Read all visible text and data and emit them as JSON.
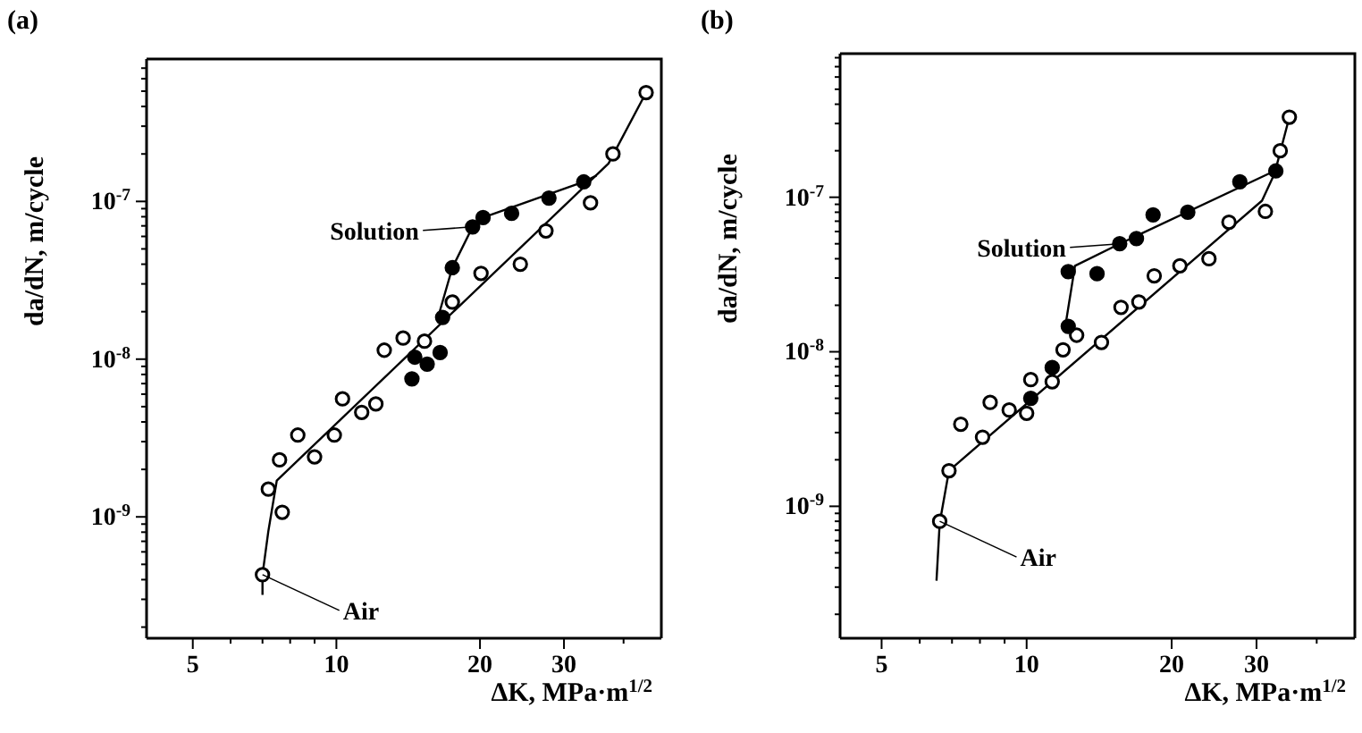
{
  "chart_data": [
    {
      "type": "scatter",
      "title": "(a)",
      "xlabel": "ΔK, MPa·m$^{1/2}$",
      "ylabel": "da/dN, m/cycle",
      "log": "xy",
      "grid": false,
      "marker": "circle",
      "xlim": [
        4,
        48
      ],
      "xticks": [
        5,
        {
          "value": 6,
          "label": null
        },
        {
          "value": 7,
          "label": null
        },
        {
          "value": 8,
          "label": null
        },
        {
          "value": 9,
          "label": null
        },
        10,
        20,
        30,
        {
          "value": 40,
          "label": null
        }
      ],
      "ylim": [
        1.7e-10,
        8e-07
      ],
      "yticks": [
        {
          "value": 2e-10,
          "label": null
        },
        {
          "value": 3e-10,
          "label": null
        },
        {
          "value": 4e-10,
          "label": null
        },
        {
          "value": 5e-10,
          "label": null
        },
        {
          "value": 6e-10,
          "label": null
        },
        {
          "value": 7e-10,
          "label": null
        },
        {
          "value": 8e-10,
          "label": null
        },
        {
          "value": 9e-10,
          "label": null
        },
        {
          "value": 1e-09,
          "label": "10$^{-9}$"
        },
        {
          "value": 2e-09,
          "label": null
        },
        {
          "value": 3e-09,
          "label": null
        },
        {
          "value": 4e-09,
          "label": null
        },
        {
          "value": 5e-09,
          "label": null
        },
        {
          "value": 6e-09,
          "label": null
        },
        {
          "value": 7e-09,
          "label": null
        },
        {
          "value": 8e-09,
          "label": null
        },
        {
          "value": 9e-09,
          "label": null
        },
        {
          "value": 1e-08,
          "label": "10$^{-8}$"
        },
        {
          "value": 2e-08,
          "label": null
        },
        {
          "value": 3e-08,
          "label": null
        },
        {
          "value": 4e-08,
          "label": null
        },
        {
          "value": 5e-08,
          "label": null
        },
        {
          "value": 6e-08,
          "label": null
        },
        {
          "value": 7e-08,
          "label": null
        },
        {
          "value": 8e-08,
          "label": null
        },
        {
          "value": 9e-08,
          "label": null
        },
        {
          "value": 1e-07,
          "label": "10$^{-7}$"
        },
        {
          "value": 2e-07,
          "label": null
        },
        {
          "value": 3e-07,
          "label": null
        },
        {
          "value": 4e-07,
          "label": null
        },
        {
          "value": 5e-07,
          "label": null
        },
        {
          "value": 6e-07,
          "label": null
        },
        {
          "value": 7e-07,
          "label": null
        }
      ],
      "annotations": [
        {
          "text": "Solution",
          "x": 19.3,
          "y": 6.9e-08
        },
        {
          "text": "Air",
          "x": 7.0,
          "y": 4.3e-10
        }
      ],
      "series": [
        {
          "color": "#ffffff",
          "x": [
            7.0,
            7.7,
            7.2,
            7.6,
            8.3,
            9.0,
            9.9,
            10.3,
            11.3,
            12.1,
            12.6,
            13.8,
            15.3,
            17.5,
            20.1,
            24.3,
            27.5,
            34.1,
            38.0,
            44.6
          ],
          "values": [
            4.3e-10,
            1.07e-09,
            1.5e-09,
            2.3e-09,
            3.3e-09,
            2.4e-09,
            3.3e-09,
            5.6e-09,
            4.6e-09,
            5.2e-09,
            1.14e-08,
            1.36e-08,
            1.3e-08,
            2.3e-08,
            3.5e-08,
            4e-08,
            6.5e-08,
            9.8e-08,
            2e-07,
            4.9e-07
          ]
        },
        {
          "color": "#000000",
          "x": [
            14.4,
            14.6,
            15.5,
            16.5,
            16.7,
            17.5,
            19.3,
            20.3,
            23.3,
            27.9,
            33.0
          ],
          "values": [
            7.5e-09,
            1.03e-08,
            9.3e-09,
            1.1e-08,
            1.84e-08,
            3.8e-08,
            6.9e-08,
            7.9e-08,
            8.4e-08,
            1.05e-07,
            1.33e-07
          ]
        },
        {
          "type": "line",
          "marker": "none",
          "color": "#000000",
          "x": [
            7.0,
            7.0,
            7.2,
            7.5,
            37.2,
            44.6
          ],
          "values": [
            3.2e-10,
            4.3e-10,
            8.1e-10,
            1.7e-09,
            1.74e-07,
            4.9e-07
          ]
        },
        {
          "type": "line",
          "marker": "none",
          "color": "#000000",
          "x": [
            16.3,
            17.5,
            19.3,
            20.3,
            33.0,
            35.1
          ],
          "values": [
            1.8e-08,
            3.8e-08,
            6.9e-08,
            7.9e-08,
            1.33e-07,
            1.46e-07
          ]
        }
      ]
    },
    {
      "type": "scatter",
      "title": "(b)",
      "xlabel": "ΔK, MPa·m$^{1/2}$",
      "ylabel": "da/dN, m/cycle",
      "log": "xy",
      "grid": false,
      "marker": "circle",
      "xlim": [
        4.1,
        48
      ],
      "xticks": [
        5,
        {
          "value": 6,
          "label": null
        },
        {
          "value": 7,
          "label": null
        },
        {
          "value": 8,
          "label": null
        },
        {
          "value": 9,
          "label": null
        },
        10,
        20,
        30,
        {
          "value": 40,
          "label": null
        }
      ],
      "ylim": [
        1.4e-10,
        8.5e-07
      ],
      "yticks": [
        {
          "value": 2e-10,
          "label": null
        },
        {
          "value": 3e-10,
          "label": null
        },
        {
          "value": 4e-10,
          "label": null
        },
        {
          "value": 5e-10,
          "label": null
        },
        {
          "value": 6e-10,
          "label": null
        },
        {
          "value": 7e-10,
          "label": null
        },
        {
          "value": 8e-10,
          "label": null
        },
        {
          "value": 9e-10,
          "label": null
        },
        {
          "value": 1e-09,
          "label": "10$^{-9}$"
        },
        {
          "value": 2e-09,
          "label": null
        },
        {
          "value": 3e-09,
          "label": null
        },
        {
          "value": 4e-09,
          "label": null
        },
        {
          "value": 5e-09,
          "label": null
        },
        {
          "value": 6e-09,
          "label": null
        },
        {
          "value": 7e-09,
          "label": null
        },
        {
          "value": 8e-09,
          "label": null
        },
        {
          "value": 9e-09,
          "label": null
        },
        {
          "value": 1e-08,
          "label": "10$^{-8}$"
        },
        {
          "value": 2e-08,
          "label": null
        },
        {
          "value": 3e-08,
          "label": null
        },
        {
          "value": 4e-08,
          "label": null
        },
        {
          "value": 5e-08,
          "label": null
        },
        {
          "value": 6e-08,
          "label": null
        },
        {
          "value": 7e-08,
          "label": null
        },
        {
          "value": 8e-08,
          "label": null
        },
        {
          "value": 9e-08,
          "label": null
        },
        {
          "value": 1e-07,
          "label": "10$^{-7}$"
        },
        {
          "value": 2e-07,
          "label": null
        },
        {
          "value": 3e-07,
          "label": null
        },
        {
          "value": 4e-07,
          "label": null
        },
        {
          "value": 5e-07,
          "label": null
        },
        {
          "value": 6e-07,
          "label": null
        },
        {
          "value": 7e-07,
          "label": null
        },
        {
          "value": 8e-07,
          "label": null
        }
      ],
      "annotations": [
        {
          "text": "Solution",
          "x": 15.6,
          "y": 5e-08
        },
        {
          "text": "Air",
          "x": 6.6,
          "y": 8e-10
        }
      ],
      "series": [
        {
          "color": "#ffffff",
          "x": [
            6.6,
            6.9,
            7.3,
            8.1,
            8.4,
            9.2,
            10.0,
            10.2,
            11.3,
            11.9,
            12.7,
            14.3,
            15.7,
            17.1,
            18.4,
            20.8,
            23.9,
            26.3,
            31.3,
            33.6,
            35.1
          ],
          "values": [
            8e-10,
            1.7e-09,
            3.4e-09,
            2.8e-09,
            4.7e-09,
            4.2e-09,
            4e-09,
            6.6e-09,
            6.4e-09,
            1.03e-08,
            1.28e-08,
            1.15e-08,
            1.94e-08,
            2.1e-08,
            3.1e-08,
            3.6e-08,
            4e-08,
            6.9e-08,
            8.1e-08,
            2e-07,
            3.3e-07
          ]
        },
        {
          "color": "#000000",
          "x": [
            10.2,
            11.3,
            12.2,
            12.2,
            14.0,
            15.6,
            16.9,
            18.3,
            21.6,
            27.7,
            32.9
          ],
          "values": [
            5e-09,
            7.9e-09,
            1.46e-08,
            3.3e-08,
            3.2e-08,
            5e-08,
            5.4e-08,
            7.7e-08,
            8e-08,
            1.26e-07,
            1.48e-07
          ]
        },
        {
          "type": "line",
          "marker": "none",
          "color": "#000000",
          "x": [
            6.5,
            6.6,
            6.9,
            30.8,
            32.7,
            35.1
          ],
          "values": [
            3.3e-10,
            7.8e-10,
            1.7e-09,
            9.5e-08,
            1.42e-07,
            3.3e-07
          ]
        },
        {
          "type": "line",
          "marker": "none",
          "color": "#000000",
          "x": [
            12.0,
            12.6,
            15.6,
            32.7
          ],
          "values": [
            1.39e-08,
            3.6e-08,
            5e-08,
            1.48e-07
          ]
        }
      ]
    }
  ]
}
